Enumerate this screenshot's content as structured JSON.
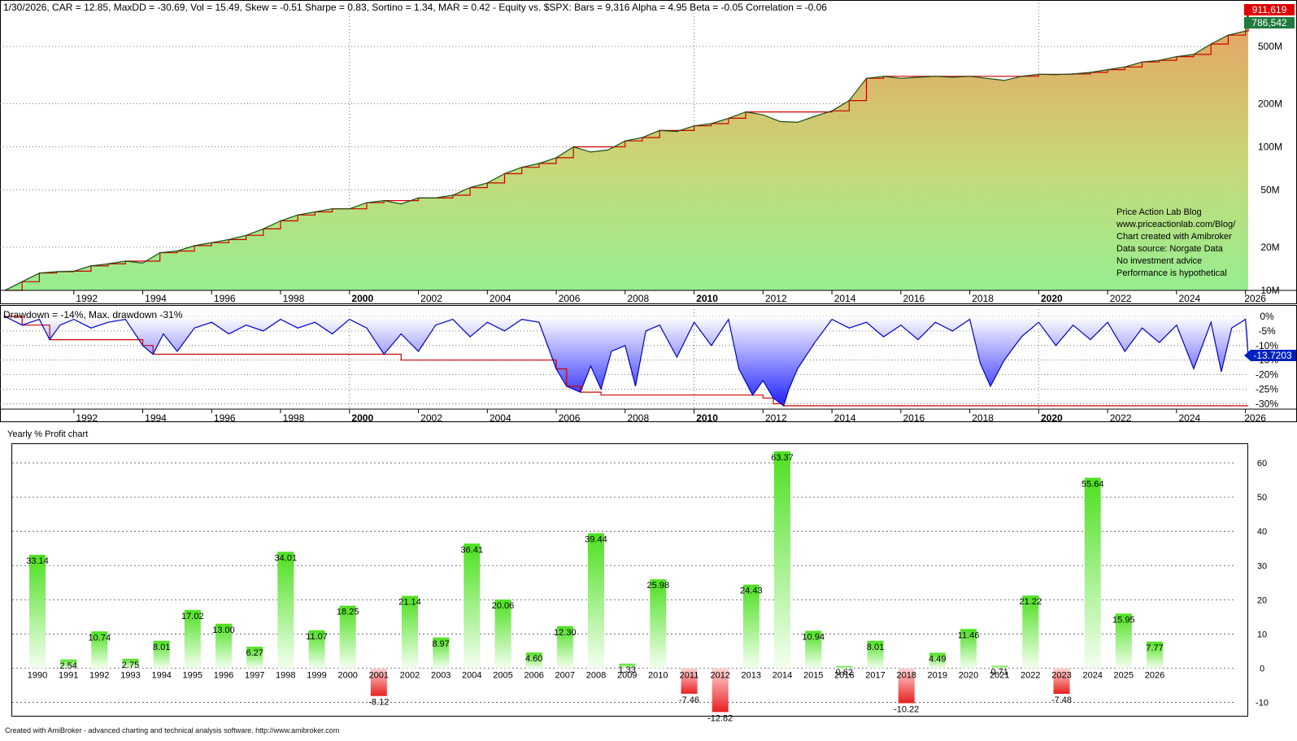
{
  "colors": {
    "equity_line": "#1b4d12",
    "peak_line": "#cc0000",
    "drawdown_line": "#0000c8",
    "grid": "#555555",
    "axis_text": "#000000",
    "positive_bar": "#4ce01f",
    "negative_bar": "#e82020",
    "label_red": "#e00000",
    "label_green": "#1f7a3d",
    "label_blue": "#0020c0"
  },
  "top_panel": {
    "title": "1/30/2026, CAR = 12.85, MaxDD = -30.69, Vol = 15.49, Skew = -0.51 Sharpe = 0.83, Sortino = 1.34, MAR = 0.42 - Equity vs. $SPX:  Bars = 9,316 Alpha = 4.95 Beta = -0.05 Correlation = -0.06",
    "price_labels": {
      "top": "911,619",
      "second": "786,542"
    },
    "y_ticks": [
      "500M",
      "200M",
      "100M",
      "50M",
      "20M",
      "10M"
    ],
    "watermark": [
      "Price Action Lab Blog",
      "www.priceactionlab.com/Blog/",
      "Chart created with Amibroker",
      "Data source: Norgate Data",
      "No investment advice",
      "Performance is hypothetical"
    ]
  },
  "middle_panel": {
    "title": "Drawdown = -14%, Max. drawdown -31%",
    "current_label": "-13.7203",
    "y_ticks": [
      "0%",
      "-5%",
      "-10%",
      "-15%",
      "-20%",
      "-25%",
      "-30%"
    ]
  },
  "x_axis": {
    "years": [
      "1992",
      "1994",
      "1996",
      "1998",
      "2000",
      "2002",
      "2004",
      "2006",
      "2008",
      "2010",
      "2012",
      "2014",
      "2016",
      "2018",
      "2020",
      "2022",
      "2024",
      "2026"
    ],
    "bold_years": [
      "2000",
      "2010",
      "2020"
    ]
  },
  "bottom_panel": {
    "title": "Yearly % Profit chart",
    "y_ticks": [
      "60",
      "50",
      "40",
      "30",
      "20",
      "10",
      "0",
      "-10"
    ]
  },
  "chart_data": [
    {
      "type": "area",
      "title": "1/30/2026, CAR = 12.85, MaxDD = -30.69, Vol = 15.49, Skew = -0.51 Sharpe = 0.83, Sortino = 1.34, MAR = 0.42 - Equity vs. $SPX:  Bars = 9,316 Alpha = 4.95 Beta = -0.05 Correlation = -0.06",
      "y_scale": "log",
      "x_range": [
        1990.0,
        2026.08
      ],
      "ylim": [
        10000000,
        1000000000
      ],
      "grid": true,
      "x": [
        1990.0,
        1990.5,
        1991.0,
        1991.5,
        1992.0,
        1992.5,
        1993.0,
        1993.5,
        1994.0,
        1994.5,
        1995.0,
        1995.5,
        1996.0,
        1996.5,
        1997.0,
        1997.5,
        1998.0,
        1998.5,
        1999.0,
        1999.5,
        2000.0,
        2000.5,
        2001.0,
        2001.5,
        2002.0,
        2002.5,
        2003.0,
        2003.5,
        2004.0,
        2004.5,
        2005.0,
        2005.5,
        2006.0,
        2006.5,
        2007.0,
        2007.5,
        2008.0,
        2008.5,
        2009.0,
        2009.5,
        2010.0,
        2010.5,
        2011.0,
        2011.5,
        2012.0,
        2012.5,
        2013.0,
        2013.5,
        2014.0,
        2014.5,
        2015.0,
        2015.5,
        2016.0,
        2016.5,
        2017.0,
        2017.5,
        2018.0,
        2018.5,
        2019.0,
        2019.5,
        2020.0,
        2020.5,
        2021.0,
        2021.5,
        2022.0,
        2022.5,
        2023.0,
        2023.5,
        2024.0,
        2024.5,
        2025.0,
        2025.5,
        2026.0,
        2026.08
      ],
      "series": [
        {
          "name": "Equity",
          "values": [
            10000000,
            11500000,
            13200000,
            13500000,
            13600000,
            14800000,
            15300000,
            16000000,
            15500000,
            18300000,
            18800000,
            20500000,
            21500000,
            22600000,
            24200000,
            26800000,
            30500000,
            33500000,
            35200000,
            37000000,
            37000000,
            40800000,
            42200000,
            40000000,
            44000000,
            44000000,
            46000000,
            52000000,
            56000000,
            65000000,
            72000000,
            76500000,
            84000000,
            100000000,
            92000000,
            95000000,
            110000000,
            116000000,
            130000000,
            128000000,
            140000000,
            145000000,
            158000000,
            175000000,
            167000000,
            150000000,
            148000000,
            163000000,
            178000000,
            210000000,
            300000000,
            310000000,
            300000000,
            305000000,
            310000000,
            305000000,
            310000000,
            300000000,
            290000000,
            310000000,
            320000000,
            318000000,
            322000000,
            330000000,
            345000000,
            360000000,
            390000000,
            400000000,
            425000000,
            440000000,
            520000000,
            600000000,
            640000000,
            900000000
          ]
        },
        {
          "name": "Peak equity",
          "values": [
            10000000,
            11500000,
            13200000,
            13500000,
            13600000,
            14800000,
            15300000,
            16000000,
            16000000,
            18300000,
            18800000,
            20500000,
            21500000,
            22600000,
            24200000,
            26800000,
            30500000,
            33500000,
            35200000,
            37000000,
            37000000,
            40800000,
            42200000,
            42200000,
            44000000,
            44000000,
            46000000,
            52000000,
            56000000,
            65000000,
            72000000,
            76500000,
            84000000,
            100000000,
            100000000,
            100000000,
            110000000,
            116000000,
            130000000,
            130000000,
            140000000,
            145000000,
            158000000,
            175000000,
            175000000,
            175000000,
            175000000,
            175000000,
            178000000,
            210000000,
            300000000,
            310000000,
            310000000,
            310000000,
            310000000,
            310000000,
            310000000,
            310000000,
            310000000,
            310000000,
            320000000,
            320000000,
            322000000,
            330000000,
            345000000,
            360000000,
            390000000,
            400000000,
            425000000,
            440000000,
            520000000,
            600000000,
            640000000,
            900000000
          ]
        }
      ]
    },
    {
      "type": "area",
      "title": "Drawdown = -14%, Max. drawdown -31%",
      "ylabel": "",
      "ylim": [
        -31,
        0
      ],
      "x_range": [
        1990.0,
        2026.08
      ],
      "grid": true,
      "x": [
        1990.0,
        1990.5,
        1991.0,
        1991.3,
        1991.6,
        1992.0,
        1992.5,
        1993.0,
        1993.5,
        1994.0,
        1994.3,
        1994.6,
        1995.0,
        1995.5,
        1996.0,
        1996.5,
        1997.0,
        1997.5,
        1998.0,
        1998.5,
        1999.0,
        1999.5,
        2000.0,
        2000.5,
        2001.0,
        2001.5,
        2002.0,
        2002.5,
        2003.0,
        2003.5,
        2004.0,
        2004.5,
        2005.0,
        2005.5,
        2006.0,
        2006.3,
        2006.7,
        2007.0,
        2007.3,
        2007.6,
        2008.0,
        2008.3,
        2008.6,
        2009.0,
        2009.5,
        2010.0,
        2010.5,
        2011.0,
        2011.3,
        2011.7,
        2012.0,
        2012.3,
        2012.6,
        2012.75,
        2013.0,
        2013.5,
        2014.0,
        2014.5,
        2015.0,
        2015.5,
        2016.0,
        2016.5,
        2017.0,
        2017.5,
        2018.0,
        2018.3,
        2018.6,
        2019.0,
        2019.5,
        2020.0,
        2020.5,
        2021.0,
        2021.5,
        2022.0,
        2022.5,
        2023.0,
        2023.5,
        2024.0,
        2024.5,
        2025.0,
        2025.3,
        2025.6,
        2026.0,
        2026.08
      ],
      "series": [
        {
          "name": "Drawdown",
          "values": [
            0,
            -3,
            -1,
            -8,
            -3,
            -1,
            -4,
            -2,
            -1,
            -10,
            -13,
            -6,
            -12,
            -4,
            -2,
            -6,
            -3,
            -5,
            -1,
            -4,
            -2,
            -6,
            -1,
            -4,
            -13,
            -6,
            -12,
            -3,
            -1,
            -7,
            -2,
            -5,
            -1,
            -2,
            -18,
            -24,
            -26,
            -17,
            -25,
            -12,
            -10,
            -24,
            -5,
            -3,
            -14,
            -2,
            -10,
            -1,
            -18,
            -27,
            -22,
            -28,
            -30.7,
            -25,
            -18,
            -9,
            -1,
            -4,
            -2,
            -7,
            -3,
            -8,
            -2,
            -5,
            -1,
            -16,
            -24,
            -15,
            -7,
            -2,
            -10,
            -3,
            -8,
            -2,
            -12,
            -4,
            -9,
            -3,
            -18,
            -2,
            -19,
            -4,
            -1,
            -13.7
          ]
        },
        {
          "name": "Max drawdown",
          "values": [
            0,
            -3,
            -3,
            -8,
            -8,
            -8,
            -8,
            -8,
            -8,
            -10,
            -13,
            -13,
            -13,
            -13,
            -13,
            -13,
            -13,
            -13,
            -13,
            -13,
            -13,
            -13,
            -13,
            -13,
            -13,
            -15,
            -15,
            -15,
            -15,
            -15,
            -15,
            -15,
            -15,
            -15,
            -18,
            -24,
            -26,
            -26,
            -27,
            -27,
            -27,
            -27,
            -27,
            -27,
            -27,
            -27,
            -27,
            -27,
            -27,
            -27,
            -28,
            -30,
            -30.7,
            -30.7,
            -30.7,
            -30.7,
            -30.7,
            -30.7,
            -30.7,
            -30.7,
            -30.7,
            -30.7,
            -30.7,
            -30.7,
            -30.7,
            -30.7,
            -30.7,
            -30.7,
            -30.7,
            -30.7,
            -30.7,
            -30.7,
            -30.7,
            -30.7,
            -30.7,
            -30.7,
            -30.7,
            -30.7,
            -30.7,
            -30.7,
            -30.7,
            -30.7,
            -30.7,
            -30.7
          ]
        }
      ]
    },
    {
      "type": "bar",
      "title": "Yearly % Profit chart",
      "ylim": [
        -12.82,
        63.37
      ],
      "grid": true,
      "categories": [
        "1990",
        "1991",
        "1992",
        "1993",
        "1994",
        "1995",
        "1996",
        "1997",
        "1998",
        "1999",
        "2000",
        "2001",
        "2002",
        "2003",
        "2004",
        "2005",
        "2006",
        "2007",
        "2008",
        "2009",
        "2010",
        "2011",
        "2012",
        "2013",
        "2014",
        "2015",
        "2016",
        "2017",
        "2018",
        "2019",
        "2020",
        "2021",
        "2022",
        "2023",
        "2024",
        "2025",
        "2026"
      ],
      "values": [
        33.14,
        2.54,
        10.74,
        2.75,
        8.01,
        17.02,
        13.0,
        6.27,
        34.01,
        11.07,
        18.25,
        -8.12,
        21.14,
        8.97,
        36.41,
        20.06,
        4.6,
        12.3,
        39.44,
        1.33,
        25.98,
        -7.46,
        -12.82,
        24.43,
        63.37,
        10.94,
        0.62,
        8.01,
        -10.22,
        4.49,
        11.46,
        0.71,
        21.22,
        -7.48,
        55.64,
        15.95,
        7.77
      ],
      "value_labels": [
        "33.14",
        "2.54",
        "10.74",
        "2.75",
        "8.01",
        "17.02",
        "13.00",
        "6.27",
        "34.01",
        "11.07",
        "18.25",
        "-8.12",
        "21.14",
        "8.97",
        "36.41",
        "20.06",
        "4.60",
        "12.30",
        "39.44",
        "1.33",
        "25.98",
        "-7.46",
        "-12.82",
        "24.43",
        "63.37",
        "10.94",
        "0.62",
        "8.01",
        "-10.22",
        "4.49",
        "11.46",
        "0.71",
        "21.22",
        "-7.48",
        "55.64",
        "15.95",
        "7.77"
      ]
    }
  ],
  "footer": {
    "text": "Created with AmiBroker - advanced charting and technical analysis software. http://www.amibroker.com"
  }
}
